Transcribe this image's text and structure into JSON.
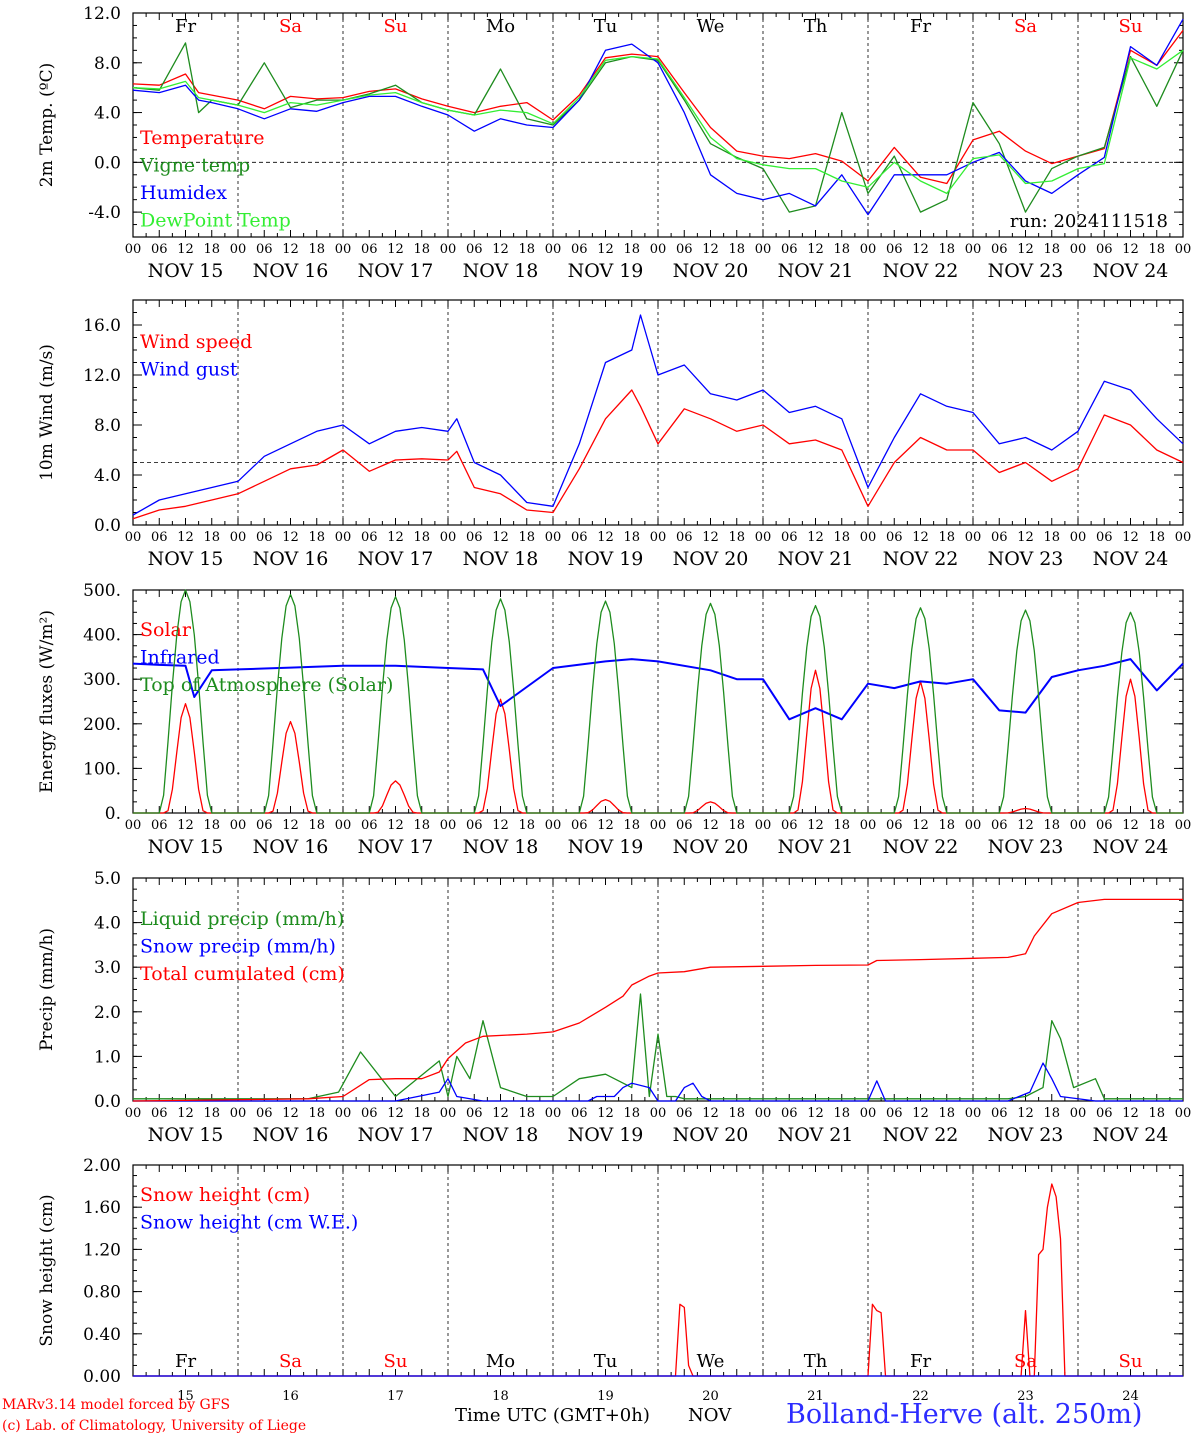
{
  "footer": {
    "model": "MARv3.14 model forced by GFS",
    "copyright": "(c) Lab. of Climatology, University of Liege",
    "time_axis": "Time UTC (GMT+0h)",
    "month": "NOV",
    "station": "Bolland-Herve (alt. 250m)"
  },
  "colors": {
    "red": "#ff0000",
    "green": "#1e8c1e",
    "blue": "#0000ff",
    "lightgreen": "#33ee33",
    "station": "#2c2cff"
  },
  "days": {
    "names": [
      "Fr",
      "Sa",
      "Su",
      "Mo",
      "Tu",
      "We",
      "Th",
      "Fr",
      "Sa",
      "Su"
    ],
    "weekend": [
      false,
      true,
      true,
      false,
      false,
      false,
      false,
      false,
      true,
      true
    ],
    "dates": [
      "NOV 15",
      "NOV 16",
      "NOV 17",
      "NOV 18",
      "NOV 19",
      "NOV 20",
      "NOV 21",
      "NOV 22",
      "NOV 23",
      "NOV 24"
    ],
    "numbers": [
      "15",
      "16",
      "17",
      "18",
      "19",
      "20",
      "21",
      "22",
      "23",
      "24"
    ],
    "hour_ticks": [
      "00",
      "06",
      "12",
      "18"
    ],
    "end_tick": "00"
  },
  "chart_data": [
    {
      "type": "line",
      "ylabel": "2m Temp. (ºC)",
      "ylim": [
        -6,
        12
      ],
      "yticks": [
        "-4.0",
        "0.0",
        "4.0",
        "8.0",
        "12.0"
      ],
      "x_unit": "hours since Nov 15 00 UTC",
      "xlim": [
        0,
        240
      ],
      "reference_line": 0,
      "annotation": "run: 2024111518",
      "show_day_names": true,
      "series": [
        {
          "name": "Temperature",
          "color": "#ff0000",
          "x": [
            0,
            6,
            12,
            15,
            18,
            24,
            30,
            36,
            42,
            48,
            54,
            60,
            66,
            72,
            78,
            84,
            90,
            96,
            102,
            108,
            114,
            120,
            126,
            132,
            138,
            144,
            150,
            156,
            162,
            168,
            174,
            180,
            186,
            192,
            198,
            204,
            210,
            216,
            222,
            228,
            234,
            240
          ],
          "y": [
            6.3,
            6.2,
            7.1,
            5.6,
            5.4,
            5.0,
            4.3,
            5.3,
            5.1,
            5.2,
            5.7,
            5.9,
            5.1,
            4.5,
            4.0,
            4.5,
            4.8,
            3.4,
            5.4,
            8.4,
            8.7,
            8.5,
            5.6,
            2.8,
            0.9,
            0.5,
            0.3,
            0.7,
            0.1,
            -1.5,
            1.2,
            -1.2,
            -1.7,
            1.8,
            2.5,
            0.9,
            -0.1,
            0.5,
            1.1,
            9.0,
            7.8,
            10.6
          ]
        },
        {
          "name": "Vigne temp",
          "color": "#1e8c1e",
          "x": [
            0,
            6,
            12,
            15,
            18,
            24,
            30,
            36,
            42,
            48,
            54,
            60,
            66,
            72,
            78,
            84,
            90,
            96,
            102,
            108,
            114,
            120,
            126,
            132,
            138,
            144,
            150,
            156,
            162,
            168,
            174,
            180,
            186,
            192,
            198,
            204,
            210,
            216,
            222,
            228,
            234,
            240
          ],
          "y": [
            6.0,
            5.8,
            9.6,
            4.0,
            5.0,
            4.6,
            8.0,
            4.4,
            5.0,
            5.0,
            5.5,
            6.2,
            4.8,
            4.2,
            3.8,
            7.5,
            3.5,
            3.0,
            5.0,
            8.0,
            8.5,
            8.2,
            5.0,
            1.5,
            0.4,
            -0.5,
            -4.0,
            -3.5,
            4.0,
            -2.5,
            0.5,
            -4.0,
            -3.0,
            4.8,
            1.5,
            -4.0,
            -0.5,
            0.5,
            1.2,
            8.5,
            4.5,
            9.0
          ]
        },
        {
          "name": "Humidex",
          "color": "#0000ff",
          "x": [
            0,
            6,
            12,
            15,
            18,
            24,
            30,
            36,
            42,
            48,
            54,
            60,
            66,
            72,
            78,
            84,
            90,
            96,
            102,
            108,
            114,
            120,
            126,
            132,
            138,
            144,
            150,
            156,
            162,
            168,
            174,
            180,
            186,
            192,
            198,
            204,
            210,
            216,
            222,
            228,
            234,
            240
          ],
          "y": [
            5.8,
            5.6,
            6.2,
            5.0,
            4.8,
            4.3,
            3.5,
            4.3,
            4.1,
            4.8,
            5.3,
            5.3,
            4.5,
            3.8,
            2.5,
            3.5,
            3.0,
            2.8,
            5.0,
            9.0,
            9.5,
            8.0,
            4.0,
            -1.0,
            -2.5,
            -3.0,
            -2.5,
            -3.5,
            -1.0,
            -4.2,
            -1.0,
            -1.0,
            -1.0,
            0.0,
            0.8,
            -1.5,
            -2.5,
            -1.0,
            0.4,
            9.3,
            7.8,
            11.5
          ]
        },
        {
          "name": "DewPoint Temp",
          "color": "#33ee33",
          "x": [
            0,
            6,
            12,
            15,
            18,
            24,
            30,
            36,
            42,
            48,
            54,
            60,
            66,
            72,
            78,
            84,
            90,
            96,
            102,
            108,
            114,
            120,
            126,
            132,
            138,
            144,
            150,
            156,
            162,
            168,
            174,
            180,
            186,
            192,
            198,
            204,
            210,
            216,
            222,
            228,
            234,
            240
          ],
          "y": [
            6.0,
            5.9,
            6.5,
            5.2,
            5.0,
            4.6,
            4.0,
            4.8,
            4.6,
            5.0,
            5.4,
            5.6,
            4.8,
            4.2,
            3.8,
            4.2,
            4.0,
            3.1,
            5.2,
            8.2,
            8.5,
            8.3,
            5.2,
            2.0,
            0.3,
            -0.2,
            -0.5,
            -0.5,
            -1.5,
            -2.0,
            0.0,
            -1.5,
            -2.5,
            0.3,
            0.6,
            -1.7,
            -1.5,
            -0.5,
            -0.1,
            8.4,
            7.5,
            9.0
          ]
        }
      ]
    },
    {
      "type": "line",
      "ylabel": "10m Wind (m/s)",
      "ylim": [
        0,
        18
      ],
      "yticks": [
        "0.0",
        "4.0",
        "8.0",
        "12.0",
        "16.0"
      ],
      "x_unit": "hours since Nov 15 00 UTC",
      "xlim": [
        0,
        240
      ],
      "reference_line": 5,
      "series": [
        {
          "name": "Wind speed",
          "color": "#ff0000",
          "x": [
            0,
            6,
            12,
            18,
            24,
            30,
            36,
            42,
            48,
            54,
            60,
            66,
            72,
            74,
            78,
            84,
            90,
            96,
            102,
            108,
            114,
            116,
            120,
            126,
            132,
            138,
            144,
            150,
            156,
            162,
            168,
            174,
            180,
            186,
            192,
            198,
            204,
            210,
            216,
            222,
            228,
            234,
            240
          ],
          "y": [
            0.5,
            1.2,
            1.5,
            2.0,
            2.5,
            3.5,
            4.5,
            4.8,
            6.0,
            4.3,
            5.2,
            5.3,
            5.2,
            5.9,
            3.0,
            2.5,
            1.2,
            1.0,
            4.5,
            8.5,
            10.8,
            9.5,
            6.5,
            9.3,
            8.5,
            7.5,
            8.0,
            6.5,
            6.8,
            6.0,
            1.5,
            5.0,
            7.0,
            6.0,
            6.0,
            4.2,
            5.0,
            3.5,
            4.5,
            8.8,
            8.0,
            6.0,
            5.0
          ]
        },
        {
          "name": "Wind gust",
          "color": "#0000ff",
          "x": [
            0,
            6,
            12,
            18,
            24,
            30,
            36,
            42,
            48,
            54,
            60,
            66,
            72,
            74,
            78,
            84,
            90,
            96,
            102,
            108,
            114,
            116,
            120,
            126,
            132,
            138,
            144,
            150,
            156,
            162,
            168,
            174,
            180,
            186,
            192,
            198,
            204,
            210,
            216,
            222,
            228,
            234,
            240
          ],
          "y": [
            0.8,
            2.0,
            2.5,
            3.0,
            3.5,
            5.5,
            6.5,
            7.5,
            8.0,
            6.5,
            7.5,
            7.8,
            7.5,
            8.5,
            5.0,
            4.0,
            1.8,
            1.5,
            6.5,
            13.0,
            14.0,
            16.8,
            12.0,
            12.8,
            10.5,
            10.0,
            10.8,
            9.0,
            9.5,
            8.5,
            3.0,
            7.0,
            10.5,
            9.5,
            9.0,
            6.5,
            7.0,
            6.0,
            7.5,
            11.5,
            10.8,
            8.5,
            6.5
          ]
        }
      ]
    },
    {
      "type": "line",
      "ylabel": "Energy fluxes (W/m²)",
      "ylim": [
        0,
        500
      ],
      "yticks": [
        "0.",
        "100.",
        "200.",
        "300.",
        "400.",
        "500."
      ],
      "x_unit": "hours since Nov 15 00 UTC",
      "xlim": [
        0,
        240
      ],
      "series": [
        {
          "name": "Solar",
          "color": "#ff0000",
          "day_peaks": [
            245,
            205,
            72,
            255,
            30,
            25,
            320,
            295,
            10,
            300
          ]
        },
        {
          "name": "Infrared",
          "color": "#0000ff",
          "x": [
            0,
            6,
            12,
            14,
            18,
            24,
            30,
            36,
            48,
            60,
            72,
            80,
            84,
            96,
            108,
            114,
            120,
            132,
            138,
            144,
            150,
            156,
            162,
            168,
            174,
            180,
            186,
            192,
            198,
            204,
            210,
            216,
            222,
            228,
            234,
            240
          ],
          "y": [
            335,
            332,
            330,
            260,
            320,
            322,
            324,
            326,
            330,
            330,
            325,
            322,
            240,
            325,
            340,
            345,
            340,
            320,
            300,
            300,
            210,
            235,
            210,
            290,
            280,
            295,
            290,
            300,
            230,
            225,
            305,
            320,
            330,
            345,
            275,
            335
          ]
        },
        {
          "name": "Top of Atmosphere (Solar)",
          "color": "#1e8c1e",
          "day_peaks": [
            500,
            490,
            485,
            480,
            475,
            470,
            465,
            460,
            455,
            450
          ]
        }
      ]
    },
    {
      "type": "line",
      "ylabel": "Precip (mm/h)",
      "ylim": [
        0,
        5
      ],
      "yticks": [
        "0.0",
        "1.0",
        "2.0",
        "3.0",
        "4.0",
        "5.0"
      ],
      "x_unit": "hours since Nov 15 00 UTC",
      "xlim": [
        0,
        240
      ],
      "series": [
        {
          "name": "Liquid precip (mm/h)",
          "color": "#1e8c1e",
          "x": [
            0,
            40,
            47,
            52,
            60,
            70,
            72,
            74,
            77,
            80,
            84,
            90,
            96,
            102,
            108,
            114,
            116,
            118,
            120,
            122,
            124,
            126,
            130,
            140,
            150,
            160,
            170,
            180,
            186,
            192,
            200,
            204,
            208,
            210,
            212,
            215,
            220,
            222,
            240
          ],
          "y": [
            0.05,
            0.05,
            0.2,
            1.1,
            0.1,
            0.9,
            0.1,
            1.0,
            0.5,
            1.8,
            0.3,
            0.1,
            0.1,
            0.5,
            0.6,
            0.3,
            2.4,
            0.1,
            1.5,
            0.1,
            0.1,
            0.05,
            0.05,
            0.05,
            0.05,
            0.05,
            0.05,
            0.05,
            0.05,
            0.05,
            0.05,
            0.1,
            0.3,
            1.8,
            1.4,
            0.3,
            0.5,
            0.05,
            0.05
          ]
        },
        {
          "name": "Snow precip (mm/h)",
          "color": "#0000ff",
          "x": [
            0,
            60,
            70,
            72,
            74,
            80,
            104,
            106,
            110,
            112,
            114,
            118,
            120,
            124,
            126,
            128,
            130,
            132,
            136,
            156,
            168,
            170,
            172,
            180,
            200,
            205,
            208,
            210,
            212,
            220,
            240
          ],
          "y": [
            0,
            0,
            0.2,
            0.5,
            0.1,
            0,
            0,
            0.1,
            0.1,
            0.3,
            0.4,
            0.3,
            0,
            0,
            0.3,
            0.4,
            0.1,
            0,
            0,
            0,
            0,
            0.45,
            0,
            0,
            0,
            0.2,
            0.85,
            0.5,
            0.1,
            0,
            0
          ]
        },
        {
          "name": "Total cumulated (cm)",
          "color": "#ff0000",
          "x": [
            0,
            40,
            48,
            54,
            60,
            66,
            70,
            72,
            76,
            80,
            90,
            96,
            102,
            108,
            112,
            114,
            118,
            120,
            126,
            132,
            144,
            156,
            168,
            170,
            180,
            192,
            200,
            204,
            206,
            210,
            216,
            222,
            240
          ],
          "y": [
            0,
            0.05,
            0.1,
            0.48,
            0.5,
            0.5,
            0.65,
            0.95,
            1.3,
            1.45,
            1.5,
            1.55,
            1.75,
            2.1,
            2.35,
            2.6,
            2.8,
            2.87,
            2.9,
            3.0,
            3.02,
            3.04,
            3.05,
            3.15,
            3.17,
            3.2,
            3.22,
            3.3,
            3.7,
            4.2,
            4.45,
            4.52,
            4.52
          ]
        }
      ]
    },
    {
      "type": "line",
      "ylabel": "Snow height (cm)",
      "ylim": [
        0,
        2
      ],
      "yticks": [
        "0.00",
        "0.40",
        "0.80",
        "1.20",
        "1.60",
        "2.00"
      ],
      "x_unit": "hours since Nov 15 00 UTC",
      "xlim": [
        0,
        240
      ],
      "show_day_names_bottom": true,
      "series": [
        {
          "name": "Snow height (cm)",
          "color": "#ff0000",
          "x": [
            0,
            124,
            125,
            126,
            127,
            128,
            167,
            168,
            169,
            170,
            171,
            172,
            203,
            204,
            205,
            206,
            207,
            208,
            209,
            210,
            211,
            212,
            213,
            214,
            240
          ],
          "y": [
            0,
            0,
            0.68,
            0.65,
            0.1,
            0,
            0,
            0,
            0.68,
            0.62,
            0.6,
            0,
            0,
            0.62,
            0,
            0,
            1.15,
            1.2,
            1.6,
            1.82,
            1.7,
            1.3,
            0,
            0,
            0
          ]
        },
        {
          "name": "Snow height (cm W.E.)",
          "color": "#0000ff",
          "x": [
            0,
            240
          ],
          "y": [
            0,
            0
          ]
        }
      ]
    }
  ]
}
